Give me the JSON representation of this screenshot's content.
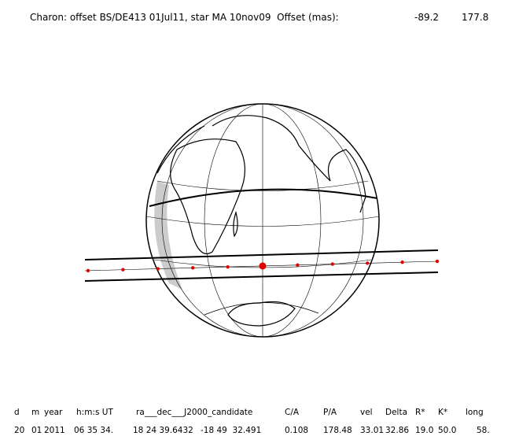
{
  "header": {
    "title": "Charon: offset BS/DE413 01Jul11, star MA 10nov09  Offset (mas):",
    "offsets": [
      "-89.2",
      "177.8"
    ]
  },
  "table": {
    "header": [
      "d",
      "m",
      "year",
      "h:m:s UT",
      "ra___dec___J2000_candidate",
      "C/A",
      "P/A",
      "vel",
      "Delta",
      "R*",
      "K*",
      "long"
    ],
    "rows": [
      [
        "20",
        "01",
        "2011",
        "06 35 34.",
        "18 24 39.6432",
        "-18 49  32.491",
        "0.108",
        "178.48",
        "33.01",
        "32.86",
        "19.0",
        "50.0",
        "58."
      ]
    ]
  }
}
